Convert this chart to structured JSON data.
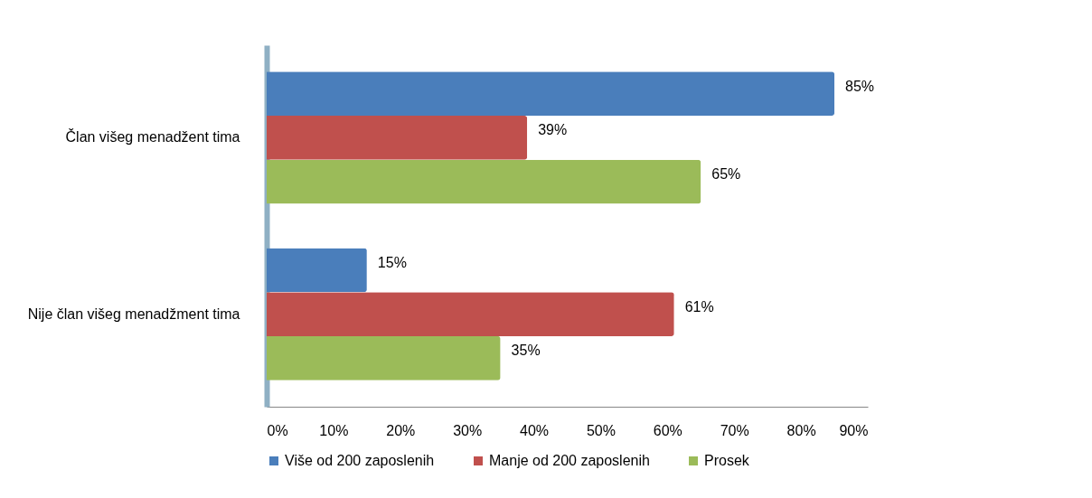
{
  "chart_data": {
    "type": "bar",
    "orientation": "horizontal",
    "categories": [
      "Član višeg menadžent tima",
      "Nije član višeg menadžment tima"
    ],
    "series": [
      {
        "name": "Više od 200 zaposlenih",
        "color": "#4a7ebb",
        "values": [
          85,
          15
        ],
        "value_labels": [
          "85%",
          "15%"
        ]
      },
      {
        "name": "Manje od 200 zaposlenih",
        "color": "#c0504d",
        "values": [
          39,
          61
        ],
        "value_labels": [
          "39%",
          "61%"
        ]
      },
      {
        "name": "Prosek",
        "color": "#9bbb59",
        "values": [
          65,
          35
        ],
        "value_labels": [
          "65%",
          "35%"
        ]
      }
    ],
    "xlim": [
      0,
      90
    ],
    "xticks": [
      {
        "value": 0,
        "label": "0%"
      },
      {
        "value": 10,
        "label": "10%"
      },
      {
        "value": 20,
        "label": "20%"
      },
      {
        "value": 30,
        "label": "30%"
      },
      {
        "value": 40,
        "label": "40%"
      },
      {
        "value": 50,
        "label": "50%"
      },
      {
        "value": 60,
        "label": "60%"
      },
      {
        "value": 70,
        "label": "70%"
      },
      {
        "value": 80,
        "label": "80%"
      },
      {
        "value": 90,
        "label": "90%"
      }
    ],
    "legend": "bottom",
    "grid": false
  }
}
